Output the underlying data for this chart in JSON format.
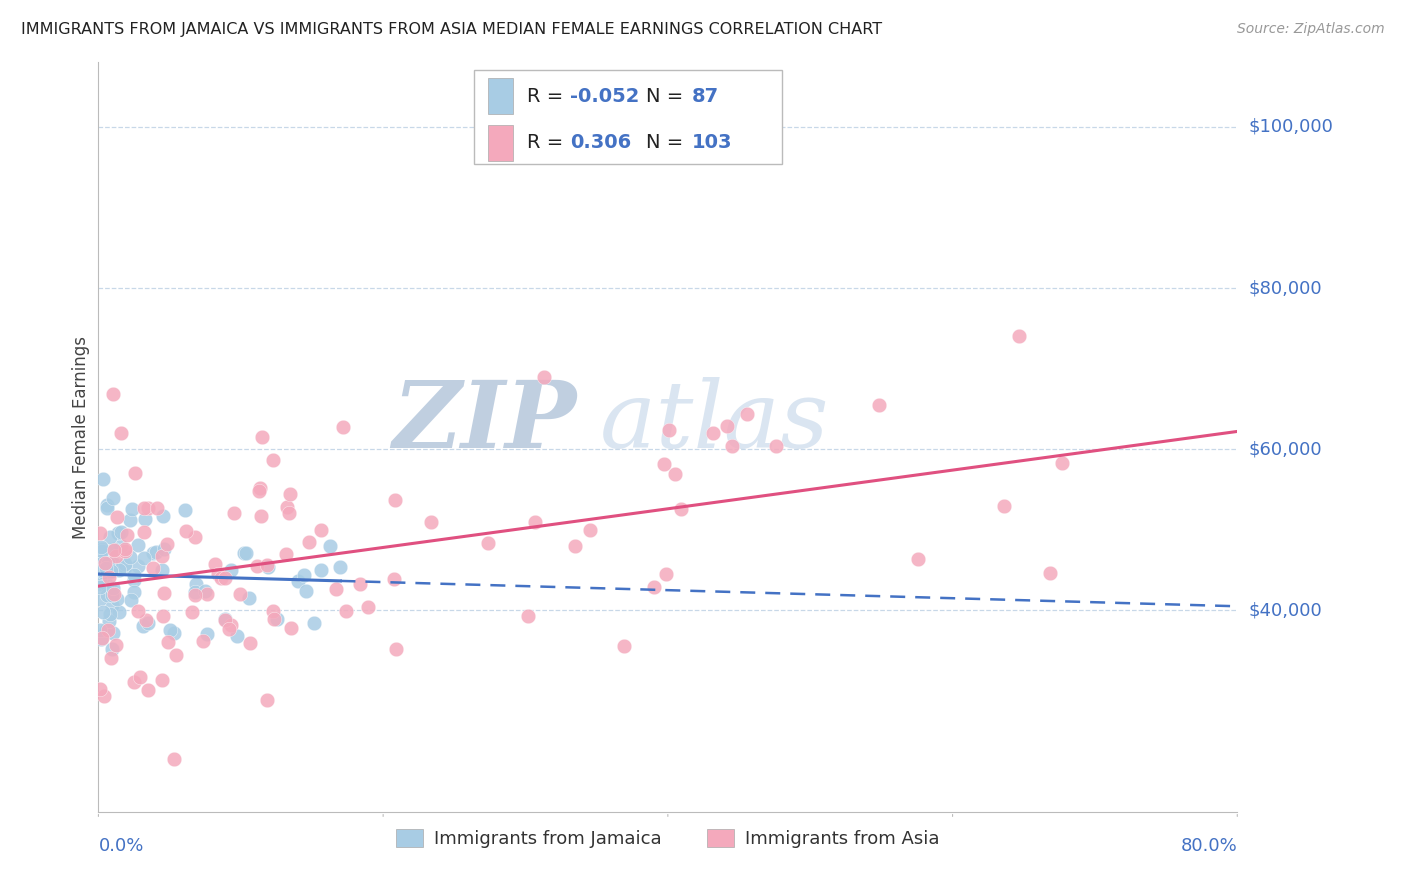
{
  "title": "IMMIGRANTS FROM JAMAICA VS IMMIGRANTS FROM ASIA MEDIAN FEMALE EARNINGS CORRELATION CHART",
  "source": "Source: ZipAtlas.com",
  "ylabel": "Median Female Earnings",
  "ytick_labels": [
    "$100,000",
    "$80,000",
    "$60,000",
    "$40,000"
  ],
  "ytick_values": [
    100000,
    80000,
    60000,
    40000
  ],
  "xlim": [
    0.0,
    0.8
  ],
  "ylim": [
    15000,
    108000
  ],
  "blue_color": "#a8cce4",
  "pink_color": "#f4a9bc",
  "blue_line_color": "#4472c4",
  "pink_line_color": "#e05080",
  "watermark_zip_color": "#c5d5e8",
  "watermark_atlas_color": "#b8cfe0",
  "title_color": "#222222",
  "axis_label_color": "#444444",
  "tick_color": "#4472c4",
  "grid_color": "#c8d8e8",
  "blue_intercept": 44500,
  "blue_slope": -5000,
  "pink_intercept": 43000,
  "pink_slope": 24000
}
